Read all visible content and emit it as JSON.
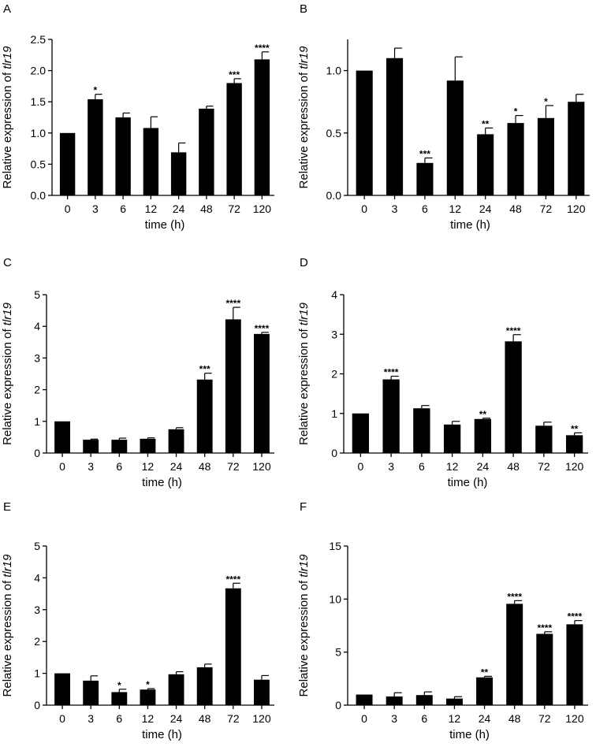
{
  "chart_data": [
    {
      "type": "bar",
      "panel": "A",
      "categories": [
        "0",
        "3",
        "6",
        "12",
        "24",
        "48",
        "72",
        "120"
      ],
      "values": [
        1.0,
        1.54,
        1.25,
        1.08,
        0.69,
        1.39,
        1.8,
        2.18
      ],
      "errors": [
        0.0,
        0.08,
        0.07,
        0.18,
        0.15,
        0.04,
        0.07,
        0.12
      ],
      "significance": [
        "",
        "*",
        "",
        "",
        "",
        "",
        "***",
        "****"
      ],
      "xlabel": "time (h)",
      "ylabel_prefix": "Relative expression of ",
      "ylabel_gene": "tlr19",
      "ylim": [
        0,
        2.5
      ],
      "yticks": [
        "0.0",
        "0.5",
        "1.0",
        "1.5",
        "2.0",
        "2.5"
      ]
    },
    {
      "type": "bar",
      "panel": "B",
      "categories": [
        "0",
        "3",
        "6",
        "12",
        "24",
        "48",
        "72",
        "120"
      ],
      "values": [
        1.0,
        1.1,
        0.26,
        0.92,
        0.49,
        0.58,
        0.62,
        0.75
      ],
      "errors": [
        0.0,
        0.08,
        0.04,
        0.19,
        0.05,
        0.06,
        0.1,
        0.06
      ],
      "significance": [
        "",
        "",
        "***",
        "",
        "**",
        "*",
        "*",
        ""
      ],
      "xlabel": "time (h)",
      "ylabel_prefix": "Relative expression of ",
      "ylabel_gene": "tlr19",
      "ylim": [
        0,
        1.25
      ],
      "yticks": [
        "0.0",
        "0.5",
        "1.0"
      ]
    },
    {
      "type": "bar",
      "panel": "C",
      "categories": [
        "0",
        "3",
        "6",
        "12",
        "24",
        "48",
        "72",
        "120"
      ],
      "values": [
        1.0,
        0.42,
        0.42,
        0.45,
        0.75,
        2.32,
        4.22,
        3.76
      ],
      "errors": [
        0.0,
        0.02,
        0.05,
        0.03,
        0.05,
        0.2,
        0.38,
        0.05
      ],
      "significance": [
        "",
        "",
        "",
        "",
        "",
        "***",
        "****",
        "****"
      ],
      "xlabel": "time (h)",
      "ylabel_prefix": "Relative expression of ",
      "ylabel_gene": "tlr19",
      "ylim": [
        0,
        5
      ],
      "yticks": [
        "0",
        "1",
        "2",
        "3",
        "4",
        "5"
      ]
    },
    {
      "type": "bar",
      "panel": "D",
      "categories": [
        "0",
        "3",
        "6",
        "12",
        "24",
        "48",
        "72",
        "120"
      ],
      "values": [
        1.0,
        1.86,
        1.13,
        0.72,
        0.86,
        2.82,
        0.69,
        0.45
      ],
      "errors": [
        0.0,
        0.08,
        0.07,
        0.08,
        0.02,
        0.17,
        0.09,
        0.06
      ],
      "significance": [
        "",
        "****",
        "",
        "",
        "**",
        "****",
        "",
        "**"
      ],
      "xlabel": "time (h)",
      "ylabel_prefix": "Relative expression of ",
      "ylabel_gene": "tlr19",
      "ylim": [
        0,
        4
      ],
      "yticks": [
        "0",
        "1",
        "2",
        "3",
        "4"
      ]
    },
    {
      "type": "bar",
      "panel": "E",
      "categories": [
        "0",
        "3",
        "6",
        "12",
        "24",
        "48",
        "72",
        "120"
      ],
      "values": [
        1.0,
        0.77,
        0.41,
        0.49,
        0.97,
        1.19,
        3.67,
        0.8
      ],
      "errors": [
        0.0,
        0.15,
        0.09,
        0.03,
        0.08,
        0.1,
        0.16,
        0.13
      ],
      "significance": [
        "",
        "",
        "*",
        "*",
        "",
        "",
        "****",
        ""
      ],
      "xlabel": "time (h)",
      "ylabel_prefix": "Relative expression of ",
      "ylabel_gene": "tlr19",
      "ylim": [
        0,
        5
      ],
      "yticks": [
        "0",
        "1",
        "2",
        "3",
        "4",
        "5"
      ]
    },
    {
      "type": "bar",
      "panel": "F",
      "categories": [
        "0",
        "3",
        "6",
        "12",
        "24",
        "48",
        "72",
        "120"
      ],
      "values": [
        1.0,
        0.82,
        0.95,
        0.62,
        2.62,
        9.55,
        6.72,
        7.62
      ],
      "errors": [
        0.0,
        0.35,
        0.3,
        0.18,
        0.1,
        0.3,
        0.2,
        0.35
      ],
      "significance": [
        "",
        "",
        "",
        "",
        "**",
        "****",
        "****",
        "****"
      ],
      "xlabel": "time (h)",
      "ylabel_prefix": "Relative expression of ",
      "ylabel_gene": "tlr19",
      "ylim": [
        0,
        15
      ],
      "yticks": [
        "0",
        "5",
        "10",
        "15"
      ]
    }
  ]
}
